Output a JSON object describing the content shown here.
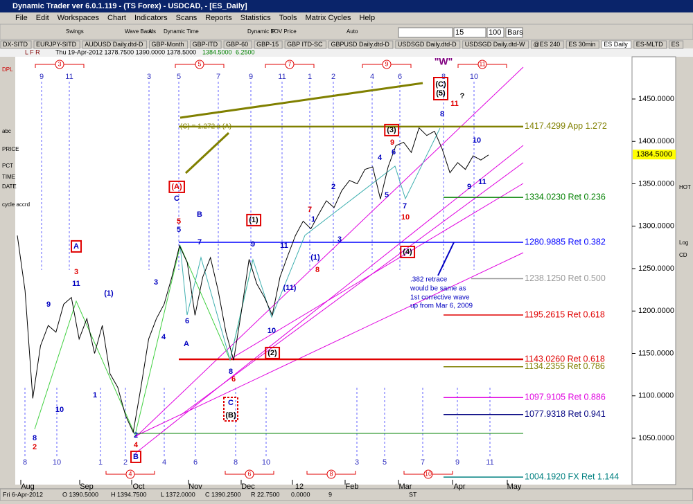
{
  "window": {
    "title": "Dynamic Trader ver 6.0.1.119 - (TS Forex) - USDCAD, - [ES_Daily]"
  },
  "menu": [
    "File",
    "Edit",
    "Workspaces",
    "Chart",
    "Indicators",
    "Scans",
    "Reports",
    "Statistics",
    "Tools",
    "Matrix Cycles",
    "Help"
  ],
  "toolbar": {
    "labels": [
      "Swings",
      "Wave Bands",
      "A",
      "Dynamic Time",
      "Dynamic EOV Price",
      "P",
      "Auto"
    ],
    "fields": [
      "15",
      "100",
      "Bars"
    ]
  },
  "tabs": [
    "DX-SITD",
    "EURJPY-SITD",
    "AUDUSD Daily.dtd-D",
    "GBP-Month",
    "GBP-ITD",
    "GBP-60",
    "GBP-15",
    "GBP ITD-SC",
    "GBPUSD Daily.dtd-D",
    "USDSGD Daily.dtd-D",
    "USDSGD Daily.dtd-W",
    "@ES 240",
    "ES 30min",
    "ES Daily",
    "ES-MLTD",
    "ES"
  ],
  "header": {
    "flags": "L F R",
    "bar": "Thu 19-Apr-2012  1378.7500  1390.0000  1378.5000",
    "close": "1384.5000",
    "change": "6.2500"
  },
  "left_tools": [
    "DPL",
    "abc",
    "PRICE",
    "PCT",
    "TIME",
    "DATE",
    "cycle accrd"
  ],
  "right_tools": [
    "HOT",
    "Log",
    "CD"
  ],
  "chart": {
    "price_axis": [
      {
        "value": 1450,
        "label": "1450.0000"
      },
      {
        "value": 1400,
        "label": "1400.0000"
      },
      {
        "value": 1350,
        "label": "1350.0000"
      },
      {
        "value": 1300,
        "label": "1300.0000"
      },
      {
        "value": 1250,
        "label": "1250.0000"
      },
      {
        "value": 1200,
        "label": "1200.0000"
      },
      {
        "value": 1150,
        "label": "1150.0000"
      },
      {
        "value": 1100,
        "label": "1100.0000"
      },
      {
        "value": 1050,
        "label": "1050.0000"
      }
    ],
    "current_price": {
      "value": 1384.5,
      "label": "1384.5000"
    },
    "months": [
      "Aug",
      "Sep",
      "Oct",
      "Nov",
      "Dec",
      "12",
      "Feb",
      "Mar",
      "Apr",
      "May"
    ],
    "prices": [
      1289,
      1224,
      1097,
      1159,
      1183,
      1175,
      1208,
      1216,
      1167,
      1191,
      1150,
      1183,
      1126,
      1110,
      1077,
      1057,
      1110,
      1167,
      1191,
      1208,
      1240,
      1277,
      1257,
      1195,
      1240,
      1263,
      1224,
      1175,
      1142,
      1199,
      1261,
      1232,
      1216,
      1195,
      1240,
      1265,
      1289,
      1306,
      1297,
      1314,
      1330,
      1322,
      1342,
      1354,
      1350,
      1367,
      1370,
      1332,
      1370,
      1395,
      1399,
      1387,
      1416,
      1407,
      1412,
      1391,
      1363,
      1375,
      1367,
      1383,
      1378,
      1384
    ],
    "levels": [
      {
        "label": "1417.4299 App 1.272",
        "color": "#808000"
      },
      {
        "label": "1334.0230 Ret 0.236",
        "color": "#008000"
      },
      {
        "label": "1280.9885 Ret 0.382",
        "color": "#0000ff"
      },
      {
        "label": "1238.1250 Ret 0.500",
        "color": "#999999"
      },
      {
        "label": "1195.2615 Ret 0.618",
        "color": "#e00000"
      },
      {
        "label": "1143.0260 Ret 0.618",
        "color": "#e00000"
      },
      {
        "label": "1134.2355 Ret 0.786",
        "color": "#808000"
      },
      {
        "label": "1097.9105 Ret 0.886",
        "color": "#e000e0"
      },
      {
        "label": "1077.9318 Ret 0.941",
        "color": "#000080"
      },
      {
        "label": "1004.1920 FX Ret 1.144",
        "color": "#008080"
      }
    ],
    "cycles_top": [
      "9",
      "11",
      "3",
      "5",
      "7",
      "9",
      "11",
      "1",
      "2",
      "4",
      "6",
      "8",
      "10"
    ],
    "cycles_bottom": [
      "8",
      "10",
      "1",
      "2",
      "4",
      "6",
      "8",
      "10",
      "3",
      "5",
      "7",
      "9",
      "11"
    ],
    "red_cycles_top": [
      "3",
      "5",
      "7",
      "9",
      "11"
    ],
    "red_cycles_bottom": [
      "4",
      "6",
      "8",
      "10"
    ],
    "waves": [
      "(A)",
      "C",
      "5",
      "5",
      "B",
      "7",
      "(1)",
      "9",
      "11",
      "7",
      "1",
      "2",
      "3",
      "(1)",
      "8",
      "(11)",
      "10",
      "(2)",
      "8",
      "6",
      "A",
      "6",
      "4",
      "3",
      "(1)",
      "9",
      "A",
      "3",
      "11",
      "1",
      "10",
      "8",
      "2",
      "2",
      "4",
      "B",
      "C",
      "(B)",
      "4",
      "6",
      "9",
      "(3)",
      "5",
      "7",
      "10",
      "(4)",
      "8",
      "\"W\"",
      "(C)",
      "(5)",
      "11",
      "?",
      "10",
      "9",
      "11"
    ],
    "notes": [
      "(C) = 1.272 x (A)",
      ".382 retrace",
      "would be same as",
      "1st corrective wave",
      "up from Mar 6, 2009"
    ]
  },
  "status": [
    "Fri 6-Apr-2012",
    "O 1390.5000",
    "H 1394.7500",
    "L 1372.0000",
    "C 1390.2500",
    "R 22.7500",
    "0.0000",
    "9",
    "ST"
  ]
}
